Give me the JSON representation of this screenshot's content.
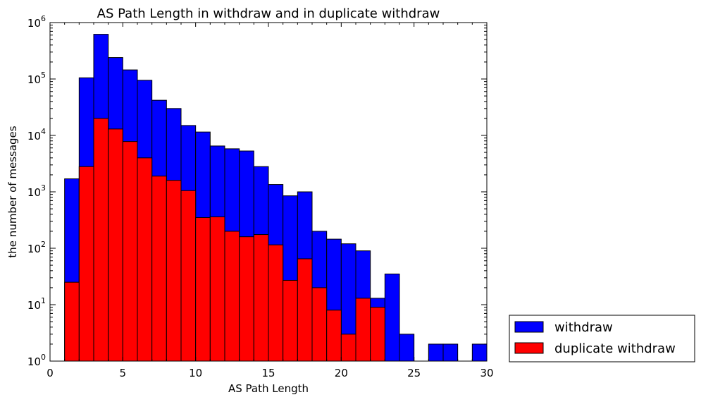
{
  "chart_data": {
    "type": "bar",
    "title": "AS Path Length in withdraw and in duplicate withdraw",
    "xlabel": "AS Path Length",
    "ylabel": "the number of messages",
    "xlim": [
      0,
      30
    ],
    "ylim": [
      1,
      1000000
    ],
    "yscale": "log",
    "xticks": [
      "0",
      "5",
      "10",
      "15",
      "20",
      "25",
      "30"
    ],
    "yticks": [
      {
        "base": "10",
        "exp": "0"
      },
      {
        "base": "10",
        "exp": "1"
      },
      {
        "base": "10",
        "exp": "2"
      },
      {
        "base": "10",
        "exp": "3"
      },
      {
        "base": "10",
        "exp": "4"
      },
      {
        "base": "10",
        "exp": "5"
      },
      {
        "base": "10",
        "exp": "6"
      }
    ],
    "bin_width": 1,
    "bin_starts": [
      1,
      2,
      3,
      4,
      5,
      6,
      7,
      8,
      9,
      10,
      11,
      12,
      13,
      14,
      15,
      16,
      17,
      18,
      19,
      20,
      21,
      22,
      23,
      24,
      25,
      26,
      27,
      28,
      29
    ],
    "legend_position": "outside lower-right",
    "series": [
      {
        "name": "withdraw",
        "color": "#0000ff",
        "values": [
          1700,
          105000,
          620000,
          240000,
          145000,
          95000,
          42000,
          30000,
          15000,
          11500,
          6500,
          5800,
          5300,
          2800,
          1350,
          850,
          1000,
          200,
          145,
          120,
          90,
          13,
          35,
          3,
          0,
          2,
          2,
          0,
          2
        ]
      },
      {
        "name": "duplicate withdraw",
        "color": "#ff0000",
        "values": [
          25,
          2800,
          20000,
          13000,
          7800,
          4000,
          1900,
          1600,
          1050,
          350,
          360,
          200,
          160,
          175,
          115,
          27,
          65,
          20,
          8,
          3,
          13,
          9,
          0,
          0,
          0,
          0,
          0,
          0,
          0
        ]
      }
    ]
  }
}
